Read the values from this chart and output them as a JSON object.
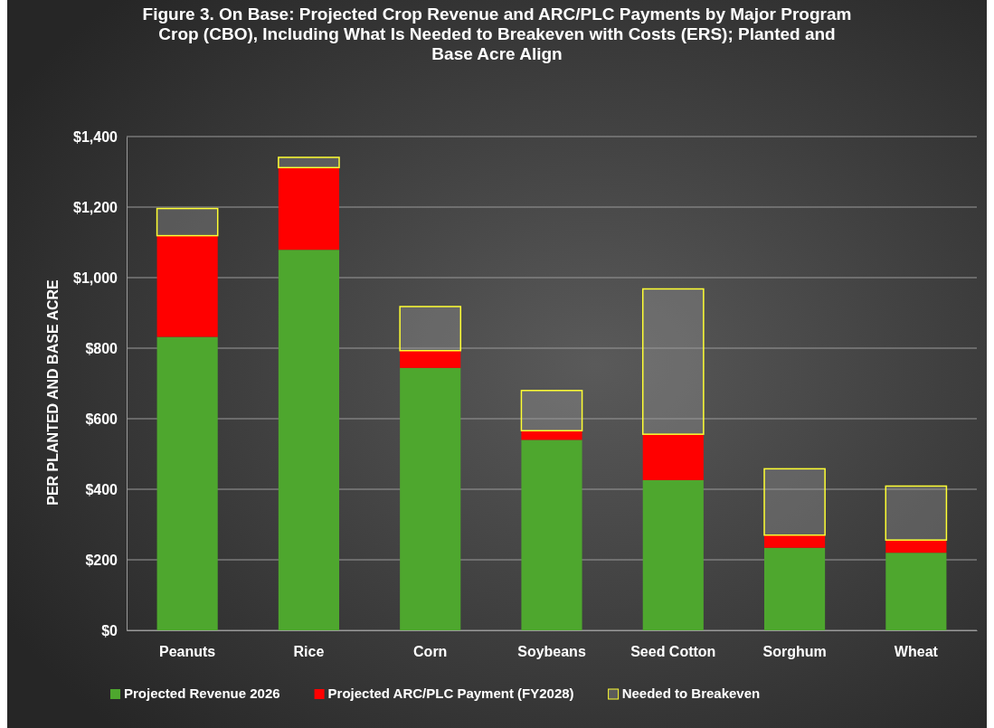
{
  "chart_data": {
    "type": "bar",
    "title": "Figure 3. On Base: Projected Crop Revenue and ARC/PLC Payments by Major Program Crop (CBO), Including What Is Needed to Breakeven with Costs (ERS); Planted and Base Acre Align",
    "ylabel": "PER PLANTED AND BASE ACRE",
    "categories": [
      "Peanuts",
      "Rice",
      "Corn",
      "Soybeans",
      "Seed Cotton",
      "Sorghum",
      "Wheat"
    ],
    "stacked": true,
    "series": [
      {
        "name": "Projected Revenue 2026",
        "color": "#4ea72e",
        "values": [
          832,
          1079,
          744,
          540,
          426,
          234,
          220
        ]
      },
      {
        "name": "Projected ARC/PLC Payment (FY2028)",
        "color": "#ff0000",
        "values": [
          287,
          233,
          49,
          26,
          130,
          36,
          36
        ]
      },
      {
        "name": "Needed to Breakeven",
        "color": "#ffff33",
        "values": [
          77,
          29,
          125,
          114,
          412,
          188,
          153
        ]
      }
    ],
    "ylim": [
      0,
      1400
    ],
    "yticks": [
      {
        "value": 0,
        "label": "$0"
      },
      {
        "value": 200,
        "label": "$200"
      },
      {
        "value": 400,
        "label": "$400"
      },
      {
        "value": 600,
        "label": "$600"
      },
      {
        "value": 800,
        "label": "$800"
      },
      {
        "value": 1000,
        "label": "$1,000"
      },
      {
        "value": 1200,
        "label": "$1,200"
      },
      {
        "value": 1400,
        "label": "$1,400"
      }
    ],
    "grid": "y",
    "legend": "bottom"
  }
}
